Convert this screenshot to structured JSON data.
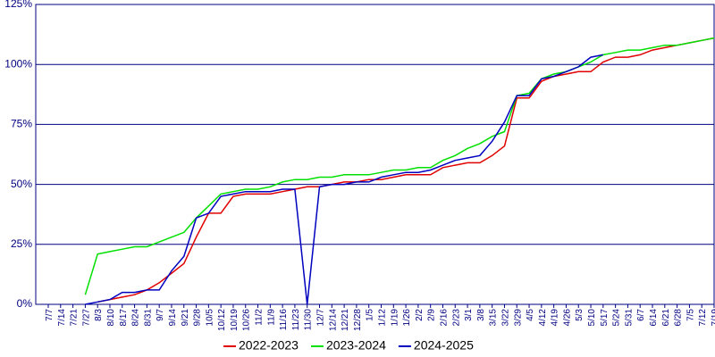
{
  "chart_data": {
    "type": "line",
    "categories": [
      "7/7",
      "7/14",
      "7/21",
      "7/27",
      "8/3",
      "8/10",
      "8/17",
      "8/24",
      "8/31",
      "9/7",
      "9/14",
      "9/21",
      "9/28",
      "10/5",
      "10/12",
      "10/19",
      "10/26",
      "11/2",
      "11/9",
      "11/16",
      "11/23",
      "11/30",
      "12/7",
      "12/14",
      "12/21",
      "12/28",
      "1/5",
      "1/12",
      "1/19",
      "1/26",
      "2/2",
      "2/9",
      "2/16",
      "2/23",
      "3/1",
      "3/8",
      "3/15",
      "3/22",
      "3/29",
      "4/5",
      "4/12",
      "4/19",
      "4/26",
      "5/3",
      "5/10",
      "5/17",
      "5/24",
      "5/31",
      "6/7",
      "6/14",
      "6/21",
      "6/28",
      "7/5",
      "7/12",
      "7/19"
    ],
    "series": [
      {
        "name": "2022-2023",
        "color": "#e00000",
        "values": [
          null,
          null,
          null,
          null,
          1,
          2,
          3,
          4,
          6,
          9,
          13,
          17,
          28,
          38,
          38,
          45,
          46,
          46,
          46,
          47,
          48,
          49,
          49,
          50,
          51,
          51,
          52,
          52,
          53,
          54,
          54,
          54,
          57,
          58,
          59,
          59,
          62,
          66,
          86,
          86,
          93,
          95,
          96,
          97,
          97,
          101,
          103,
          103,
          104,
          106,
          107,
          108,
          109,
          110,
          111
        ]
      },
      {
        "name": "2023-2024",
        "color": "#00e000",
        "values": [
          null,
          null,
          null,
          4,
          21,
          22,
          23,
          24,
          24,
          26,
          28,
          30,
          36,
          41,
          46,
          47,
          48,
          48,
          49,
          51,
          52,
          52,
          53,
          53,
          54,
          54,
          54,
          55,
          56,
          56,
          57,
          57,
          60,
          62,
          65,
          67,
          70,
          72,
          87,
          88,
          94,
          96,
          97,
          99,
          101,
          104,
          105,
          106,
          106,
          107,
          108,
          108,
          109,
          110,
          111
        ]
      },
      {
        "name": "2024-2025",
        "color": "#0000c0",
        "values": [
          null,
          null,
          null,
          0,
          1,
          2,
          5,
          5,
          6,
          6,
          14,
          20,
          36,
          38,
          45,
          46,
          47,
          47,
          47,
          48,
          48,
          0,
          49,
          50,
          50,
          51,
          51,
          53,
          54,
          55,
          55,
          56,
          58,
          60,
          61,
          62,
          68,
          76,
          87,
          87,
          94,
          95,
          97,
          99,
          103,
          104,
          null,
          null,
          null,
          null,
          null,
          null,
          null,
          null,
          null
        ]
      }
    ],
    "ylim": [
      0,
      125
    ],
    "yticks": [
      {
        "value": 0,
        "label": "0%"
      },
      {
        "value": 25,
        "label": "25%"
      },
      {
        "value": 50,
        "label": "50%"
      },
      {
        "value": 75,
        "label": "75%"
      },
      {
        "value": 100,
        "label": "100%"
      },
      {
        "value": 125,
        "label": "125%"
      }
    ],
    "grid": true
  }
}
